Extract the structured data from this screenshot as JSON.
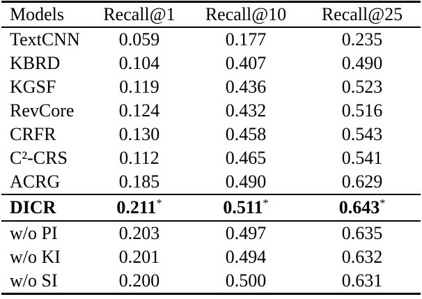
{
  "table": {
    "columns": [
      "Models",
      "Recall@1",
      "Recall@10",
      "Recall@25"
    ],
    "star_symbol": "*",
    "rows": [
      {
        "model": "TextCNN",
        "values": [
          "0.059",
          "0.177",
          "0.235"
        ],
        "bold": false,
        "star": false,
        "group": "baseline"
      },
      {
        "model": "KBRD",
        "values": [
          "0.104",
          "0.407",
          "0.490"
        ],
        "bold": false,
        "star": false,
        "group": "baseline"
      },
      {
        "model": "KGSF",
        "values": [
          "0.119",
          "0.436",
          "0.523"
        ],
        "bold": false,
        "star": false,
        "group": "baseline"
      },
      {
        "model": "RevCore",
        "values": [
          "0.124",
          "0.432",
          "0.516"
        ],
        "bold": false,
        "star": false,
        "group": "baseline"
      },
      {
        "model": "CRFR",
        "values": [
          "0.130",
          "0.458",
          "0.543"
        ],
        "bold": false,
        "star": false,
        "group": "baseline"
      },
      {
        "model": "C²-CRS",
        "values": [
          "0.112",
          "0.465",
          "0.541"
        ],
        "bold": false,
        "star": false,
        "group": "baseline"
      },
      {
        "model": "ACRG",
        "values": [
          "0.185",
          "0.490",
          "0.629"
        ],
        "bold": false,
        "star": false,
        "group": "baseline"
      },
      {
        "model": "DICR",
        "values": [
          "0.211",
          "0.511",
          "0.643"
        ],
        "bold": true,
        "star": true,
        "group": "proposed"
      },
      {
        "model": "w/o PI",
        "values": [
          "0.203",
          "0.497",
          "0.635"
        ],
        "bold": false,
        "star": false,
        "group": "ablation"
      },
      {
        "model": "w/o KI",
        "values": [
          "0.201",
          "0.494",
          "0.632"
        ],
        "bold": false,
        "star": false,
        "group": "ablation"
      },
      {
        "model": "w/o SI",
        "values": [
          "0.200",
          "0.500",
          "0.631"
        ],
        "bold": false,
        "star": false,
        "group": "ablation"
      }
    ]
  }
}
